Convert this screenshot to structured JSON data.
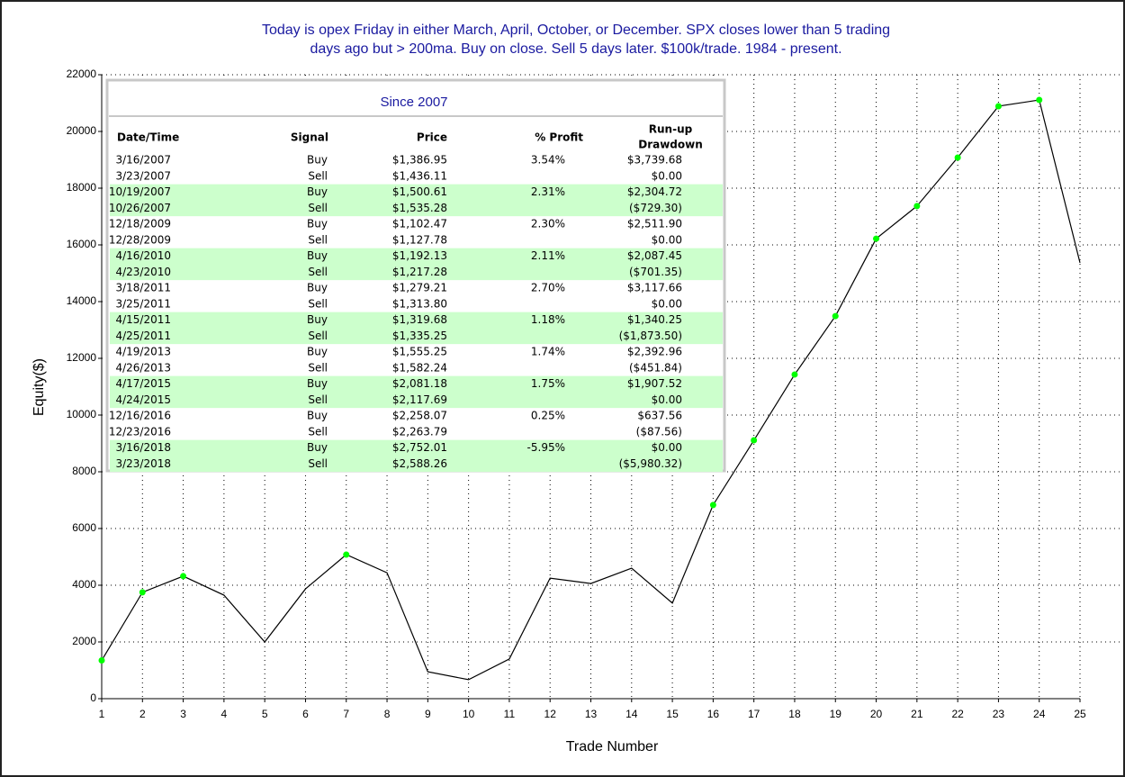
{
  "chart_data": {
    "type": "line",
    "title": [
      "Today is opex Friday in either March, April, October, or December. SPX closes lower than 5 trading",
      "days ago but > 200ma. Buy on close. Sell 5 days later. $100k/trade. 1984 - present."
    ],
    "x_label": "Trade Number",
    "y_label": "Equity($)",
    "x": [
      1,
      2,
      3,
      4,
      5,
      6,
      7,
      8,
      9,
      10,
      11,
      12,
      13,
      14,
      15,
      16,
      17,
      18,
      19,
      20,
      21,
      22,
      23,
      24,
      25
    ],
    "series": [
      {
        "name": "Equity",
        "color": "#000000",
        "marker_color": "#00ff00",
        "values": [
          1350,
          3750,
          4320,
          3650,
          2000,
          3870,
          5080,
          4440,
          950,
          670,
          1400,
          4250,
          4060,
          4600,
          3370,
          6830,
          9110,
          11430,
          13490,
          16220,
          17370,
          19080,
          20890,
          21110,
          15370
        ]
      }
    ],
    "xlim": [
      1,
      25
    ],
    "xticks": [
      1,
      2,
      3,
      4,
      5,
      6,
      7,
      8,
      9,
      10,
      11,
      12,
      13,
      14,
      15,
      16,
      17,
      18,
      19,
      20,
      21,
      22,
      23,
      24,
      25
    ],
    "ylim": [
      0,
      22000
    ],
    "yticks": [
      0,
      2000,
      4000,
      6000,
      8000,
      10000,
      12000,
      14000,
      16000,
      18000,
      20000,
      22000
    ],
    "grid": true
  },
  "table": {
    "title": "Since 2007",
    "columns": [
      "Date/Time",
      "Signal",
      "Price",
      "% Profit"
    ],
    "last_column": [
      "Run-up",
      "Drawdown"
    ],
    "trades": [
      {
        "buy": {
          "date": "3/16/2007",
          "signal": "Buy",
          "price": "$1,386.95",
          "profit": "3.54%",
          "runup": "$3,739.68"
        },
        "sell": {
          "date": "3/23/2007",
          "signal": "Sell",
          "price": "$1,436.11",
          "drawdown": "$0.00"
        }
      },
      {
        "buy": {
          "date": "10/19/2007",
          "signal": "Buy",
          "price": "$1,500.61",
          "profit": "2.31%",
          "runup": "$2,304.72"
        },
        "sell": {
          "date": "10/26/2007",
          "signal": "Sell",
          "price": "$1,535.28",
          "drawdown": "($729.30)"
        }
      },
      {
        "buy": {
          "date": "12/18/2009",
          "signal": "Buy",
          "price": "$1,102.47",
          "profit": "2.30%",
          "runup": "$2,511.90"
        },
        "sell": {
          "date": "12/28/2009",
          "signal": "Sell",
          "price": "$1,127.78",
          "drawdown": "$0.00"
        }
      },
      {
        "buy": {
          "date": "4/16/2010",
          "signal": "Buy",
          "price": "$1,192.13",
          "profit": "2.11%",
          "runup": "$2,087.45"
        },
        "sell": {
          "date": "4/23/2010",
          "signal": "Sell",
          "price": "$1,217.28",
          "drawdown": "($701.35)"
        }
      },
      {
        "buy": {
          "date": "3/18/2011",
          "signal": "Buy",
          "price": "$1,279.21",
          "profit": "2.70%",
          "runup": "$3,117.66"
        },
        "sell": {
          "date": "3/25/2011",
          "signal": "Sell",
          "price": "$1,313.80",
          "drawdown": "$0.00"
        }
      },
      {
        "buy": {
          "date": "4/15/2011",
          "signal": "Buy",
          "price": "$1,319.68",
          "profit": "1.18%",
          "runup": "$1,340.25"
        },
        "sell": {
          "date": "4/25/2011",
          "signal": "Sell",
          "price": "$1,335.25",
          "drawdown": "($1,873.50)"
        }
      },
      {
        "buy": {
          "date": "4/19/2013",
          "signal": "Buy",
          "price": "$1,555.25",
          "profit": "1.74%",
          "runup": "$2,392.96"
        },
        "sell": {
          "date": "4/26/2013",
          "signal": "Sell",
          "price": "$1,582.24",
          "drawdown": "($451.84)"
        }
      },
      {
        "buy": {
          "date": "4/17/2015",
          "signal": "Buy",
          "price": "$2,081.18",
          "profit": "1.75%",
          "runup": "$1,907.52"
        },
        "sell": {
          "date": "4/24/2015",
          "signal": "Sell",
          "price": "$2,117.69",
          "drawdown": "$0.00"
        }
      },
      {
        "buy": {
          "date": "12/16/2016",
          "signal": "Buy",
          "price": "$2,258.07",
          "profit": "0.25%",
          "runup": "$637.56"
        },
        "sell": {
          "date": "12/23/2016",
          "signal": "Sell",
          "price": "$2,263.79",
          "drawdown": "($87.56)"
        }
      },
      {
        "buy": {
          "date": "3/16/2018",
          "signal": "Buy",
          "price": "$2,752.01",
          "profit": "-5.95%",
          "runup": "$0.00"
        },
        "sell": {
          "date": "3/23/2018",
          "signal": "Sell",
          "price": "$2,588.26",
          "drawdown": "($5,980.32)"
        }
      }
    ]
  }
}
